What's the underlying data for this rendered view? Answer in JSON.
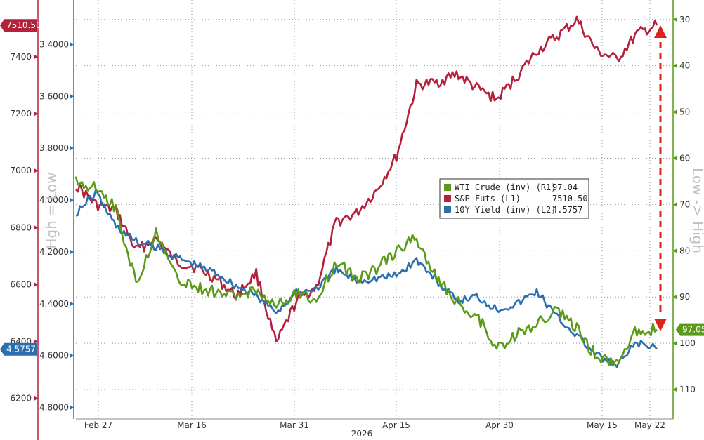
{
  "chart_data": {
    "type": "line",
    "x_ticks": [
      "Feb 27",
      "Mar 16",
      "Mar 31",
      "Apr 15",
      "Apr 30",
      "May 15",
      "May 22"
    ],
    "x_year": "2026",
    "left_axis_label": "Hgh = Low",
    "right_axis_label": "Low -> High",
    "axes": {
      "L1": {
        "label": "S&P Futs",
        "ticks": [
          "6200",
          "6400",
          "6600",
          "6800",
          "7000",
          "7200",
          "7400"
        ],
        "range": [
          6150,
          7580
        ],
        "color": "#b5213a"
      },
      "L2": {
        "label": "10Y Yield (inv)",
        "ticks": [
          "3.4000",
          "3.6000",
          "3.8000",
          "4.0000",
          "4.2000",
          "4.4000",
          "4.6000",
          "4.8000"
        ],
        "range": [
          3.25,
          4.82
        ],
        "inverted": true,
        "color": "#2a6fb0"
      },
      "R1": {
        "label": "WTI Crude (inv)",
        "ticks": [
          "30",
          "40",
          "50",
          "60",
          "70",
          "80",
          "90",
          "100",
          "110"
        ],
        "range": [
          27,
          115
        ],
        "inverted": true,
        "color": "#5a9a18"
      }
    },
    "x": [
      "Feb 24",
      "Feb 27",
      "Mar 3",
      "Mar 6",
      "Mar 9",
      "Mar 12",
      "Mar 16",
      "Mar 19",
      "Mar 23",
      "Mar 26",
      "Mar 31",
      "Apr 3",
      "Apr 6",
      "Apr 8",
      "Apr 10",
      "Apr 13",
      "Apr 15",
      "Apr 17",
      "Apr 20",
      "Apr 23",
      "Apr 27",
      "Apr 30",
      "May 4",
      "May 7",
      "May 11",
      "May 15",
      "May 18",
      "May 20",
      "May 22",
      "May 23"
    ],
    "series": [
      {
        "name": "S&P Futs (L1)",
        "axis": "L1",
        "color": "#b5213a",
        "last_value": "7510.50",
        "values": [
          6950,
          6880,
          6860,
          6720,
          6760,
          6680,
          6660,
          6620,
          6560,
          6640,
          6390,
          6540,
          6590,
          6820,
          6850,
          6930,
          7050,
          7300,
          7310,
          7340,
          7290,
          7250,
          7330,
          7420,
          7470,
          7530,
          7420,
          7390,
          7480,
          7510.5
        ]
      },
      {
        "name": "10Y Yield (inv) (L2)",
        "axis": "L2",
        "color": "#2a6fb0",
        "last_value": "4.5757",
        "values": [
          4.05,
          3.97,
          4.1,
          4.16,
          4.18,
          4.22,
          4.25,
          4.28,
          4.33,
          4.37,
          4.43,
          4.36,
          4.34,
          4.27,
          4.31,
          4.3,
          4.29,
          4.23,
          4.31,
          4.39,
          4.37,
          4.42,
          4.4,
          4.35,
          4.45,
          4.52,
          4.6,
          4.64,
          4.55,
          4.5757
        ]
      },
      {
        "name": "WTI Crude (inv) (R1)",
        "axis": "R1",
        "color": "#5a9a18",
        "last_value": "97.04",
        "values": [
          65,
          66,
          71,
          87,
          76,
          86,
          88,
          89,
          90,
          88,
          92,
          89,
          91,
          82,
          86,
          84,
          80,
          77,
          86,
          91,
          94,
          101,
          98,
          96,
          93,
          97,
          103,
          104,
          97,
          97.04
        ]
      }
    ],
    "legend": [
      {
        "label": "WTI Crude (inv) (R1)",
        "value": "97.04",
        "color": "#5a9a18"
      },
      {
        "label": "S&P Futs (L1)",
        "value": "7510.50",
        "color": "#b5213a"
      },
      {
        "label": "10Y Yield (inv) (L2)",
        "value": "4.5757",
        "color": "#2a6fb0"
      }
    ],
    "legend_position": "center-right",
    "grid": true,
    "annotation": "red dashed double-headed arrow (vertical) on right side"
  }
}
